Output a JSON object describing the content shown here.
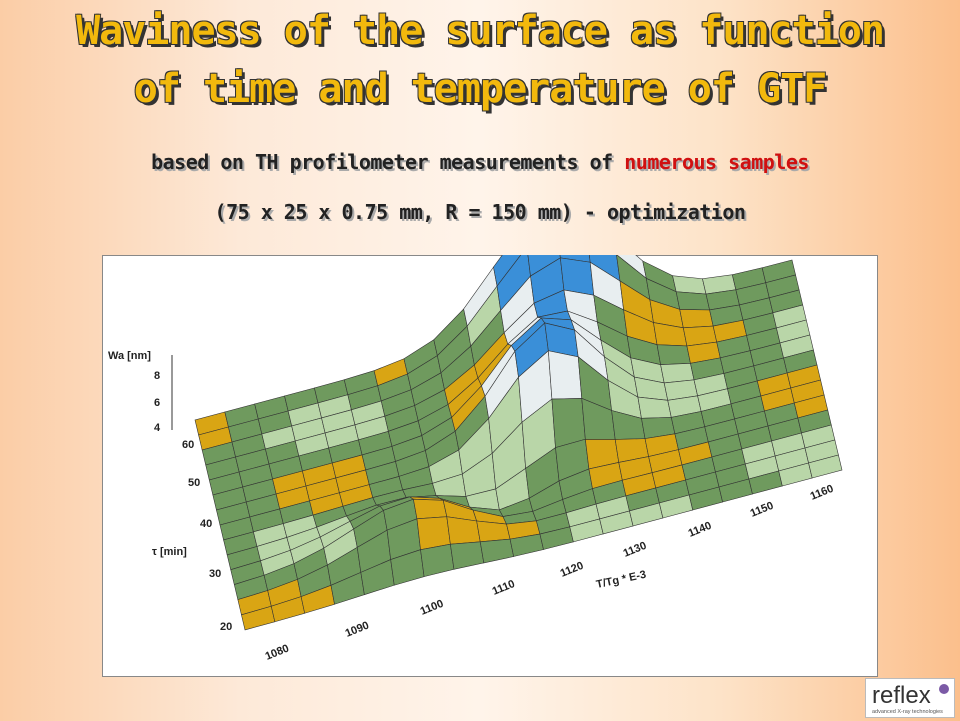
{
  "slide": {
    "title": [
      "Waviness of the surface as function",
      "of time and temperature of GTF"
    ],
    "subtitle": {
      "lead": "based on TH profilometer measurements of",
      "highlight": "numerous samples"
    },
    "subtitle2": "(75 x 25 x 0.75 mm, R = 150 mm) - optimization",
    "figure": {
      "z_label": "Wa [nm]",
      "z_ticks": [
        8,
        6,
        4
      ],
      "tau_label": "τ [min]",
      "tau_ticks": [
        60,
        50,
        40,
        30,
        20
      ],
      "t_label": "T/Tg * E-3",
      "t_ticks": [
        1080,
        1090,
        1100,
        1110,
        1120,
        1130,
        1140,
        1150,
        1160
      ]
    },
    "logo": {
      "name": "reflex",
      "tagline": "advanced X-ray technologies"
    }
  }
}
